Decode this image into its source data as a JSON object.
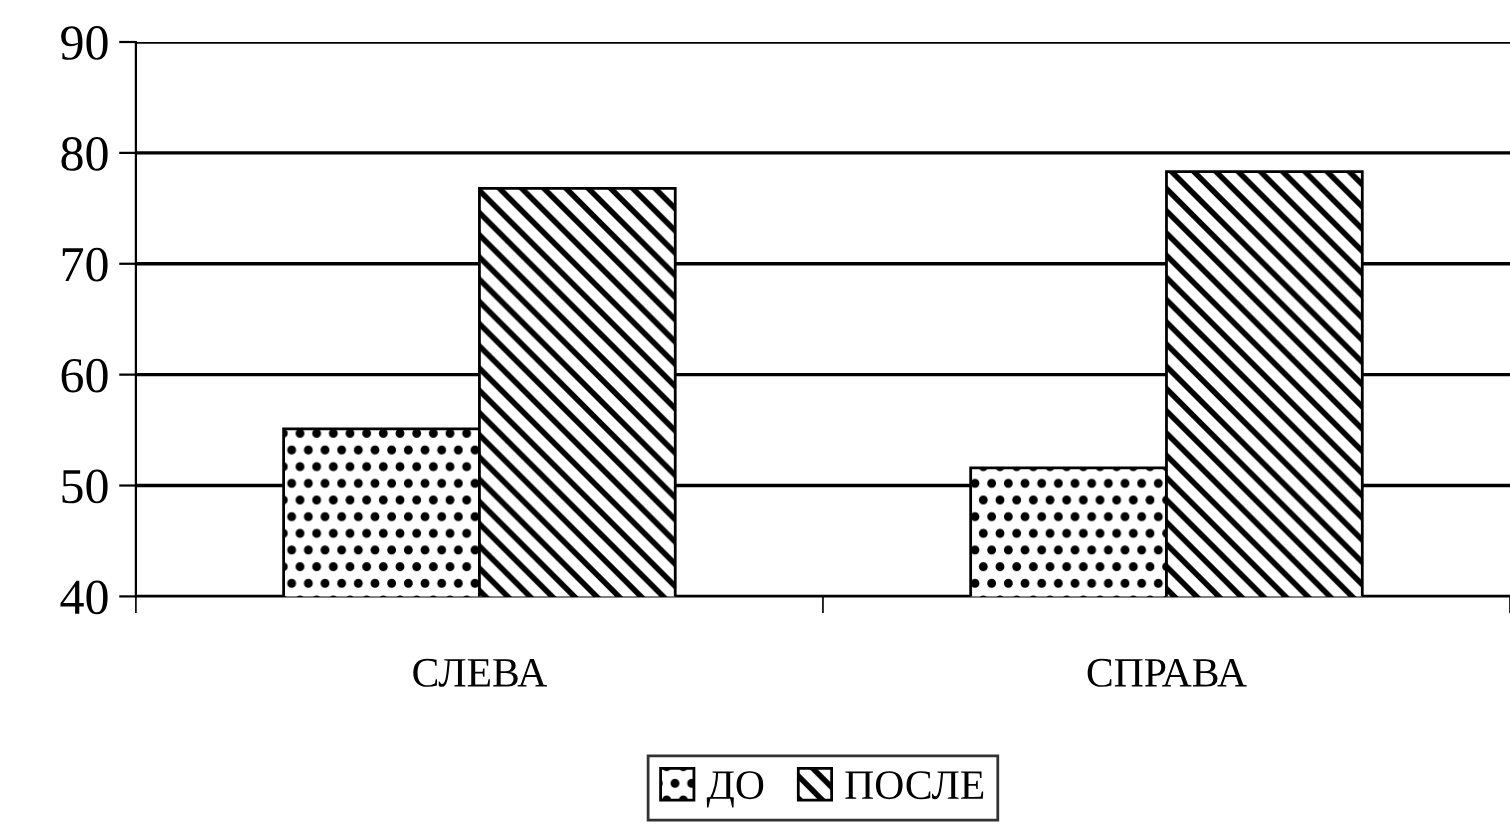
{
  "chart_data": {
    "type": "bar",
    "categories": [
      "СЛЕВА",
      "СПРАВА"
    ],
    "series": [
      {
        "name": "ДО",
        "color": "#000000",
        "values": [
          55.1,
          51.6
        ]
      },
      {
        "name": "ПОСЛЕ",
        "color": "#000000",
        "values": [
          76.8,
          78.3
        ]
      }
    ],
    "ylim": [
      40,
      90
    ],
    "yticks": [
      40,
      50,
      60,
      70,
      80,
      90
    ],
    "grid": "y",
    "legend": "bottom"
  }
}
